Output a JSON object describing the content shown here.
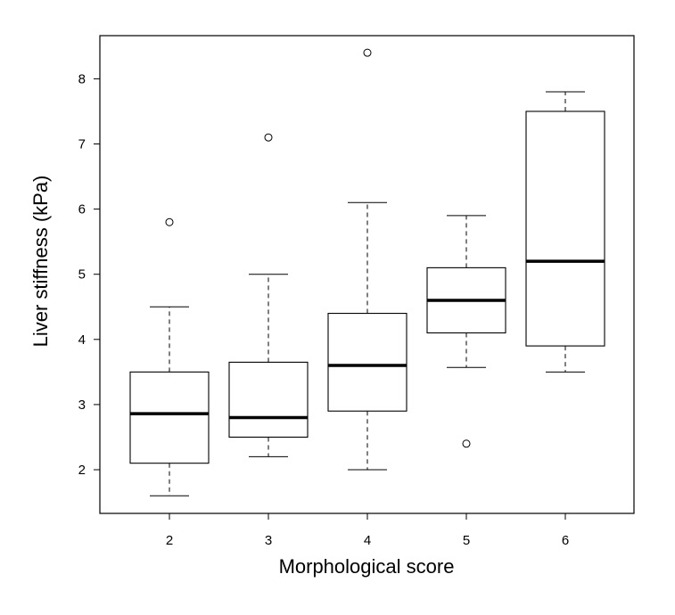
{
  "chart_data": {
    "type": "boxplot",
    "title": "",
    "xlabel": "Morphological score",
    "ylabel": "Liver stiffness (kPa)",
    "ylim": [
      1.3,
      8.7
    ],
    "yticks": [
      2,
      3,
      4,
      5,
      6,
      7,
      8
    ],
    "categories": [
      "2",
      "3",
      "4",
      "5",
      "6"
    ],
    "boxes": [
      {
        "category": "2",
        "whisker_low": 1.6,
        "q1": 2.1,
        "median": 2.86,
        "q3": 3.5,
        "whisker_high": 4.5,
        "outliers": [
          5.8
        ]
      },
      {
        "category": "3",
        "whisker_low": 2.2,
        "q1": 2.5,
        "median": 2.8,
        "q3": 3.65,
        "whisker_high": 5.0,
        "outliers": [
          7.1
        ]
      },
      {
        "category": "4",
        "whisker_low": 2.0,
        "q1": 2.9,
        "median": 3.6,
        "q3": 4.4,
        "whisker_high": 6.1,
        "outliers": [
          8.4
        ]
      },
      {
        "category": "5",
        "whisker_low": 3.57,
        "q1": 4.1,
        "median": 4.6,
        "q3": 5.1,
        "whisker_high": 5.9,
        "outliers": [
          2.4
        ]
      },
      {
        "category": "6",
        "whisker_low": 3.5,
        "q1": 3.9,
        "median": 5.2,
        "q3": 7.5,
        "whisker_high": 7.8,
        "outliers": []
      }
    ],
    "grid": false,
    "legend": "none"
  }
}
